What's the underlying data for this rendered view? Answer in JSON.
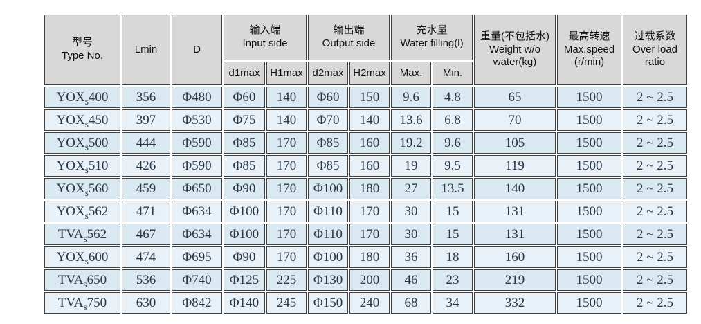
{
  "colors": {
    "header_bg": "#d8d8d8",
    "row_odd": "#d9e8f1",
    "row_even": "#e8f1f7",
    "border": "#404040",
    "header_text": "#111111",
    "data_text": "#2c3744",
    "page_bg": "#ffffff"
  },
  "header": {
    "type": {
      "cn": "型号",
      "en": "Type No."
    },
    "lmin": "Lmin",
    "d": "D",
    "input": {
      "cn": "输入端",
      "en": "Input side"
    },
    "output": {
      "cn": "输出端",
      "en": "Output side"
    },
    "water": {
      "cn": "充水量",
      "en": "Water filling(l)"
    },
    "sub": {
      "d1": "d1max",
      "h1": "H1max",
      "d2": "d2max",
      "h2": "H2max",
      "max": "Max.",
      "min": "Min."
    },
    "weight": {
      "cn": "重量(不包括水)",
      "en1": "Weight w/o",
      "en2": "water(kg)"
    },
    "speed": {
      "cn": "最高转速",
      "en1": "Max.speed",
      "en2": "(r/min)"
    },
    "overload": {
      "cn": "过载系数",
      "en1": "Over load",
      "en2": "ratio"
    }
  },
  "rows": [
    {
      "type": {
        "prefix": "YOX",
        "sub": "s",
        "num": "400"
      },
      "values": [
        "356",
        "Φ480",
        "Φ60",
        "140",
        "Φ60",
        "150",
        "9.6",
        "4.8",
        "65",
        "1500",
        "2 ~ 2.5"
      ]
    },
    {
      "type": {
        "prefix": "YOX",
        "sub": "s",
        "num": "450"
      },
      "values": [
        "397",
        "Φ530",
        "Φ75",
        "140",
        "Φ70",
        "140",
        "13.6",
        "6.8",
        "70",
        "1500",
        "2 ~ 2.5"
      ]
    },
    {
      "type": {
        "prefix": "YOX",
        "sub": "s",
        "num": "500"
      },
      "values": [
        "444",
        "Φ590",
        "Φ85",
        "170",
        "Φ85",
        "160",
        "19.2",
        "9.6",
        "105",
        "1500",
        "2 ~ 2.5"
      ]
    },
    {
      "type": {
        "prefix": "YOX",
        "sub": "s",
        "num": "510"
      },
      "values": [
        "426",
        "Φ590",
        "Φ85",
        "170",
        "Φ85",
        "160",
        "19",
        "9.5",
        "119",
        "1500",
        "2 ~ 2.5"
      ]
    },
    {
      "type": {
        "prefix": "YOX",
        "sub": "s",
        "num": "560"
      },
      "values": [
        "459",
        "Φ650",
        "Φ90",
        "170",
        "Φ100",
        "180",
        "27",
        "13.5",
        "140",
        "1500",
        "2 ~ 2.5"
      ]
    },
    {
      "type": {
        "prefix": "YOX",
        "sub": "s",
        "num": "562"
      },
      "values": [
        "471",
        "Φ634",
        "Φ100",
        "170",
        "Φ110",
        "170",
        "30",
        "15",
        "131",
        "1500",
        "2 ~ 2.5"
      ]
    },
    {
      "type": {
        "prefix": "TVA",
        "sub": "s",
        "num": "562"
      },
      "values": [
        "467",
        "Φ634",
        "Φ100",
        "170",
        "Φ110",
        "170",
        "30",
        "15",
        "131",
        "1500",
        "2 ~ 2.5"
      ]
    },
    {
      "type": {
        "prefix": "YOX",
        "sub": "s",
        "num": "600"
      },
      "values": [
        "474",
        "Φ695",
        "Φ90",
        "170",
        "Φ100",
        "180",
        "36",
        "18",
        "160",
        "1500",
        "2 ~ 2.5"
      ]
    },
    {
      "type": {
        "prefix": "TVA",
        "sub": "s",
        "num": "650"
      },
      "values": [
        "536",
        "Φ740",
        "Φ125",
        "225",
        "Φ130",
        "200",
        "46",
        "23",
        "219",
        "1500",
        "2 ~ 2.5"
      ]
    },
    {
      "type": {
        "prefix": "TVA",
        "sub": "s",
        "num": "750"
      },
      "values": [
        "630",
        "Φ842",
        "Φ140",
        "245",
        "Φ150",
        "240",
        "68",
        "34",
        "332",
        "1500",
        "2 ~ 2.5"
      ]
    }
  ]
}
